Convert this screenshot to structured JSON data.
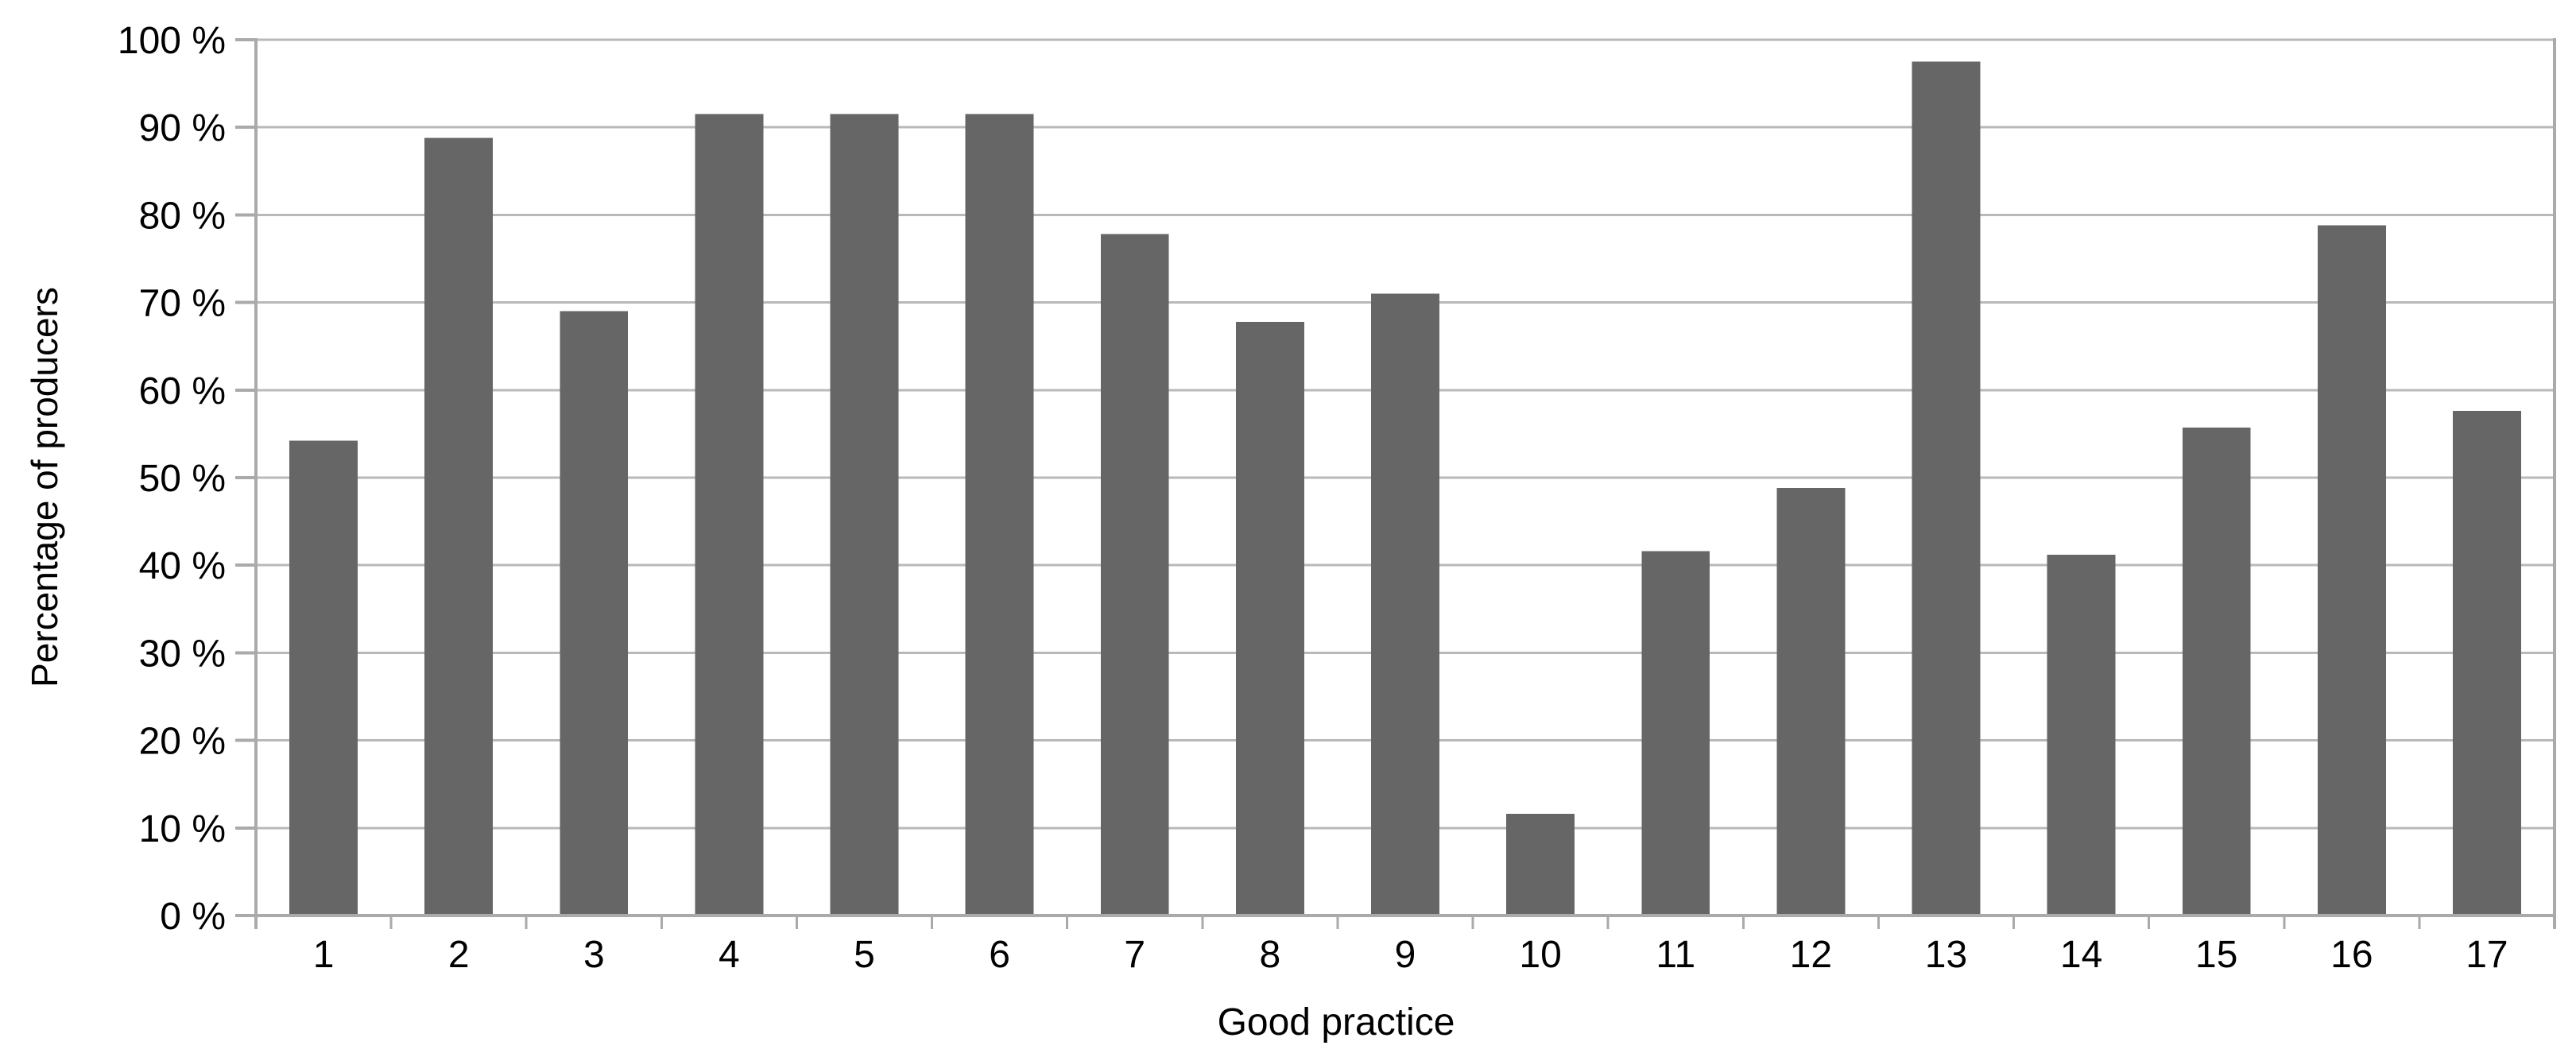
{
  "chart_data": {
    "type": "bar",
    "title": "",
    "xlabel": "Good practice",
    "ylabel": "Percentage of producers",
    "categories": [
      "1",
      "2",
      "3",
      "4",
      "5",
      "6",
      "7",
      "8",
      "9",
      "10",
      "11",
      "12",
      "13",
      "14",
      "15",
      "16",
      "17"
    ],
    "values": [
      54.2,
      88.8,
      69.0,
      91.5,
      91.5,
      91.5,
      77.8,
      67.8,
      71.0,
      11.6,
      41.6,
      48.8,
      97.5,
      41.2,
      55.7,
      78.8,
      57.6
    ],
    "unit": "%",
    "ylim": [
      0,
      100
    ],
    "ytick_step": 10,
    "ytick_labels": [
      "0 %",
      "10 %",
      "20 %",
      "30 %",
      "40 %",
      "50 %",
      "60 %",
      "70 %",
      "80 %",
      "90 %",
      "100 %"
    ],
    "grid": "horizontal-major",
    "legend": "none",
    "series_name": "",
    "colors": {
      "bar": "#666666",
      "gridline": "#b9b9b9",
      "axis": "#aaaaaa",
      "text": "#000000",
      "background": "#ffffff"
    }
  }
}
